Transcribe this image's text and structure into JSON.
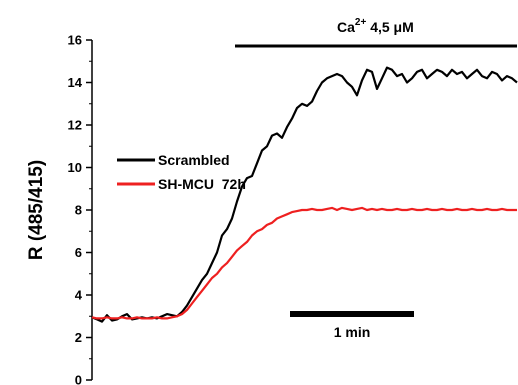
{
  "chart_data": {
    "type": "line",
    "ylabel": "R (485/415)",
    "ylim": [
      0,
      16
    ],
    "yticks": [
      0,
      2,
      4,
      6,
      8,
      10,
      12,
      14,
      16
    ],
    "yticks_labels": [
      "0",
      "2",
      "4",
      "6",
      "8",
      "10",
      "12",
      "14",
      "16"
    ],
    "grid": false,
    "legend_position": "left",
    "annotations": {
      "treatment_prefix": "Ca",
      "treatment_superscript": "2+",
      "treatment_suffix": " 4,5 μM",
      "scale_bar_label": "1 min"
    },
    "x": [
      0,
      1,
      2,
      3,
      4,
      5,
      6,
      7,
      8,
      9,
      10,
      11,
      12,
      13,
      14,
      15,
      16,
      17,
      18,
      19,
      20,
      21,
      22,
      23,
      24,
      25,
      26,
      27,
      28,
      29,
      30,
      31,
      32,
      33,
      34,
      35,
      36,
      37,
      38,
      39,
      40,
      41,
      42,
      43,
      44,
      45,
      46,
      47,
      48,
      49,
      50,
      51,
      52,
      53,
      54,
      55,
      56,
      57,
      58,
      59,
      60,
      61,
      62,
      63,
      64,
      65,
      66,
      67,
      68,
      69,
      70,
      71,
      72,
      73,
      74,
      75,
      76,
      77,
      78,
      79,
      80,
      81,
      82,
      83,
      84,
      85
    ],
    "series": [
      {
        "name": "Scrambled",
        "color": "#000000",
        "values": [
          2.95,
          2.85,
          2.75,
          3.05,
          2.8,
          2.85,
          3.0,
          3.1,
          2.85,
          2.9,
          2.95,
          2.9,
          2.95,
          2.9,
          3.0,
          3.1,
          3.05,
          3.0,
          3.2,
          3.5,
          3.9,
          4.3,
          4.7,
          5.0,
          5.5,
          6.0,
          6.8,
          7.1,
          7.6,
          8.4,
          9.1,
          9.5,
          9.6,
          10.2,
          10.8,
          11.0,
          11.5,
          11.6,
          11.4,
          11.9,
          12.3,
          12.8,
          13.0,
          12.9,
          13.1,
          13.6,
          14.0,
          14.2,
          14.3,
          14.4,
          14.3,
          14.0,
          13.8,
          13.4,
          14.1,
          14.6,
          14.5,
          13.7,
          14.2,
          14.7,
          14.6,
          14.3,
          14.4,
          14.0,
          14.2,
          14.5,
          14.6,
          14.2,
          14.4,
          14.6,
          14.5,
          14.3,
          14.6,
          14.4,
          14.5,
          14.2,
          14.4,
          14.6,
          14.3,
          14.2,
          14.5,
          14.4,
          14.1,
          14.3,
          14.2,
          14.0
        ]
      },
      {
        "name": "SH-MCU  72h",
        "color": "#ee2020",
        "values": [
          2.95,
          2.9,
          2.9,
          2.95,
          2.9,
          2.9,
          2.95,
          2.9,
          2.9,
          2.95,
          2.9,
          2.9,
          2.9,
          2.95,
          2.9,
          2.9,
          2.95,
          3.0,
          3.1,
          3.3,
          3.6,
          3.9,
          4.2,
          4.5,
          4.8,
          5.0,
          5.3,
          5.5,
          5.8,
          6.1,
          6.3,
          6.5,
          6.8,
          7.0,
          7.1,
          7.3,
          7.4,
          7.6,
          7.7,
          7.8,
          7.9,
          7.95,
          8.0,
          8.0,
          8.05,
          8.0,
          8.0,
          8.05,
          8.1,
          8.0,
          8.1,
          8.05,
          8.0,
          8.05,
          8.1,
          8.0,
          8.05,
          8.0,
          8.05,
          8.0,
          8.0,
          8.05,
          8.0,
          8.0,
          8.05,
          8.0,
          8.0,
          8.05,
          8.0,
          8.0,
          8.05,
          8.0,
          8.0,
          8.05,
          8.0,
          8.0,
          8.05,
          8.0,
          8.0,
          8.05,
          8.0,
          8.0,
          8.05,
          8.0,
          8.0,
          8.0
        ]
      }
    ]
  }
}
